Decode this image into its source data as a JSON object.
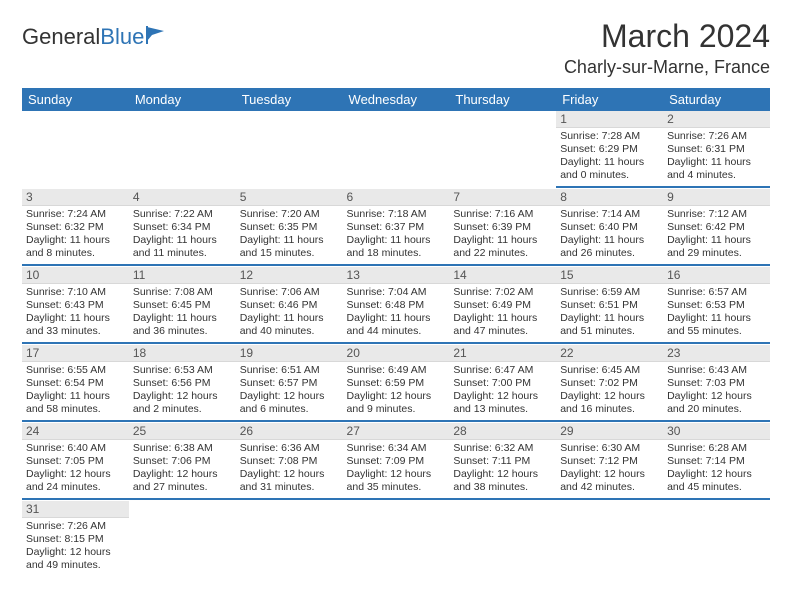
{
  "logo": {
    "text_a": "General",
    "text_b": "Blue"
  },
  "title": "March 2024",
  "location": "Charly-sur-Marne, France",
  "colors": {
    "header_bg": "#2e74b5",
    "header_fg": "#ffffff",
    "daynum_bg": "#e9e9e9",
    "rule": "#2e74b5",
    "text": "#333333"
  },
  "weekdays": [
    "Sunday",
    "Monday",
    "Tuesday",
    "Wednesday",
    "Thursday",
    "Friday",
    "Saturday"
  ],
  "weeks": [
    [
      {
        "n": "",
        "sr": "",
        "ss": "",
        "dl": ""
      },
      {
        "n": "",
        "sr": "",
        "ss": "",
        "dl": ""
      },
      {
        "n": "",
        "sr": "",
        "ss": "",
        "dl": ""
      },
      {
        "n": "",
        "sr": "",
        "ss": "",
        "dl": ""
      },
      {
        "n": "",
        "sr": "",
        "ss": "",
        "dl": ""
      },
      {
        "n": "1",
        "sr": "Sunrise: 7:28 AM",
        "ss": "Sunset: 6:29 PM",
        "dl": "Daylight: 11 hours and 0 minutes."
      },
      {
        "n": "2",
        "sr": "Sunrise: 7:26 AM",
        "ss": "Sunset: 6:31 PM",
        "dl": "Daylight: 11 hours and 4 minutes."
      }
    ],
    [
      {
        "n": "3",
        "sr": "Sunrise: 7:24 AM",
        "ss": "Sunset: 6:32 PM",
        "dl": "Daylight: 11 hours and 8 minutes."
      },
      {
        "n": "4",
        "sr": "Sunrise: 7:22 AM",
        "ss": "Sunset: 6:34 PM",
        "dl": "Daylight: 11 hours and 11 minutes."
      },
      {
        "n": "5",
        "sr": "Sunrise: 7:20 AM",
        "ss": "Sunset: 6:35 PM",
        "dl": "Daylight: 11 hours and 15 minutes."
      },
      {
        "n": "6",
        "sr": "Sunrise: 7:18 AM",
        "ss": "Sunset: 6:37 PM",
        "dl": "Daylight: 11 hours and 18 minutes."
      },
      {
        "n": "7",
        "sr": "Sunrise: 7:16 AM",
        "ss": "Sunset: 6:39 PM",
        "dl": "Daylight: 11 hours and 22 minutes."
      },
      {
        "n": "8",
        "sr": "Sunrise: 7:14 AM",
        "ss": "Sunset: 6:40 PM",
        "dl": "Daylight: 11 hours and 26 minutes."
      },
      {
        "n": "9",
        "sr": "Sunrise: 7:12 AM",
        "ss": "Sunset: 6:42 PM",
        "dl": "Daylight: 11 hours and 29 minutes."
      }
    ],
    [
      {
        "n": "10",
        "sr": "Sunrise: 7:10 AM",
        "ss": "Sunset: 6:43 PM",
        "dl": "Daylight: 11 hours and 33 minutes."
      },
      {
        "n": "11",
        "sr": "Sunrise: 7:08 AM",
        "ss": "Sunset: 6:45 PM",
        "dl": "Daylight: 11 hours and 36 minutes."
      },
      {
        "n": "12",
        "sr": "Sunrise: 7:06 AM",
        "ss": "Sunset: 6:46 PM",
        "dl": "Daylight: 11 hours and 40 minutes."
      },
      {
        "n": "13",
        "sr": "Sunrise: 7:04 AM",
        "ss": "Sunset: 6:48 PM",
        "dl": "Daylight: 11 hours and 44 minutes."
      },
      {
        "n": "14",
        "sr": "Sunrise: 7:02 AM",
        "ss": "Sunset: 6:49 PM",
        "dl": "Daylight: 11 hours and 47 minutes."
      },
      {
        "n": "15",
        "sr": "Sunrise: 6:59 AM",
        "ss": "Sunset: 6:51 PM",
        "dl": "Daylight: 11 hours and 51 minutes."
      },
      {
        "n": "16",
        "sr": "Sunrise: 6:57 AM",
        "ss": "Sunset: 6:53 PM",
        "dl": "Daylight: 11 hours and 55 minutes."
      }
    ],
    [
      {
        "n": "17",
        "sr": "Sunrise: 6:55 AM",
        "ss": "Sunset: 6:54 PM",
        "dl": "Daylight: 11 hours and 58 minutes."
      },
      {
        "n": "18",
        "sr": "Sunrise: 6:53 AM",
        "ss": "Sunset: 6:56 PM",
        "dl": "Daylight: 12 hours and 2 minutes."
      },
      {
        "n": "19",
        "sr": "Sunrise: 6:51 AM",
        "ss": "Sunset: 6:57 PM",
        "dl": "Daylight: 12 hours and 6 minutes."
      },
      {
        "n": "20",
        "sr": "Sunrise: 6:49 AM",
        "ss": "Sunset: 6:59 PM",
        "dl": "Daylight: 12 hours and 9 minutes."
      },
      {
        "n": "21",
        "sr": "Sunrise: 6:47 AM",
        "ss": "Sunset: 7:00 PM",
        "dl": "Daylight: 12 hours and 13 minutes."
      },
      {
        "n": "22",
        "sr": "Sunrise: 6:45 AM",
        "ss": "Sunset: 7:02 PM",
        "dl": "Daylight: 12 hours and 16 minutes."
      },
      {
        "n": "23",
        "sr": "Sunrise: 6:43 AM",
        "ss": "Sunset: 7:03 PM",
        "dl": "Daylight: 12 hours and 20 minutes."
      }
    ],
    [
      {
        "n": "24",
        "sr": "Sunrise: 6:40 AM",
        "ss": "Sunset: 7:05 PM",
        "dl": "Daylight: 12 hours and 24 minutes."
      },
      {
        "n": "25",
        "sr": "Sunrise: 6:38 AM",
        "ss": "Sunset: 7:06 PM",
        "dl": "Daylight: 12 hours and 27 minutes."
      },
      {
        "n": "26",
        "sr": "Sunrise: 6:36 AM",
        "ss": "Sunset: 7:08 PM",
        "dl": "Daylight: 12 hours and 31 minutes."
      },
      {
        "n": "27",
        "sr": "Sunrise: 6:34 AM",
        "ss": "Sunset: 7:09 PM",
        "dl": "Daylight: 12 hours and 35 minutes."
      },
      {
        "n": "28",
        "sr": "Sunrise: 6:32 AM",
        "ss": "Sunset: 7:11 PM",
        "dl": "Daylight: 12 hours and 38 minutes."
      },
      {
        "n": "29",
        "sr": "Sunrise: 6:30 AM",
        "ss": "Sunset: 7:12 PM",
        "dl": "Daylight: 12 hours and 42 minutes."
      },
      {
        "n": "30",
        "sr": "Sunrise: 6:28 AM",
        "ss": "Sunset: 7:14 PM",
        "dl": "Daylight: 12 hours and 45 minutes."
      }
    ],
    [
      {
        "n": "31",
        "sr": "Sunrise: 7:26 AM",
        "ss": "Sunset: 8:15 PM",
        "dl": "Daylight: 12 hours and 49 minutes."
      },
      {
        "n": "",
        "sr": "",
        "ss": "",
        "dl": ""
      },
      {
        "n": "",
        "sr": "",
        "ss": "",
        "dl": ""
      },
      {
        "n": "",
        "sr": "",
        "ss": "",
        "dl": ""
      },
      {
        "n": "",
        "sr": "",
        "ss": "",
        "dl": ""
      },
      {
        "n": "",
        "sr": "",
        "ss": "",
        "dl": ""
      },
      {
        "n": "",
        "sr": "",
        "ss": "",
        "dl": ""
      }
    ]
  ]
}
